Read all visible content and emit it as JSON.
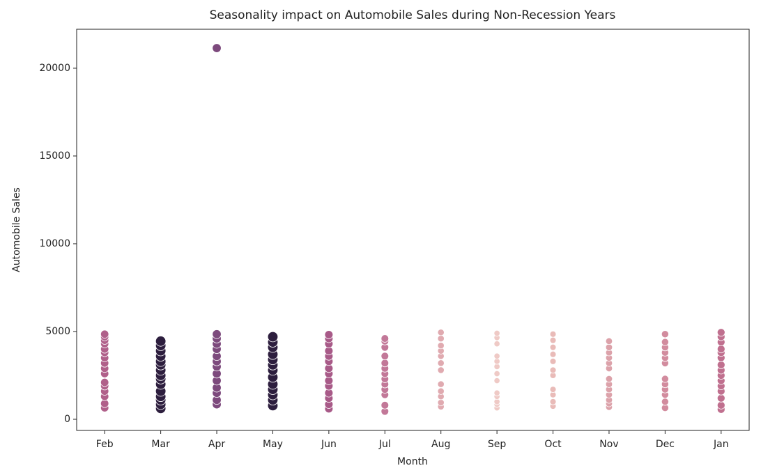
{
  "chart_data": {
    "type": "scatter",
    "title": "Seasonality impact on Automobile Sales during Non-Recession Years",
    "x_label": "Month",
    "y_label": "Automobile Sales",
    "categories": [
      "Feb",
      "Mar",
      "Apr",
      "May",
      "Jun",
      "Jul",
      "Aug",
      "Sep",
      "Oct",
      "Nov",
      "Dec",
      "Jan"
    ],
    "colors": [
      "#b0608a",
      "#2d1e3e",
      "#7d4a7d",
      "#2d1e3e",
      "#a85a88",
      "#c27898",
      "#e0aab0",
      "#efcac6",
      "#e9bbb8",
      "#dca2aa",
      "#d28c9e",
      "#c0708f"
    ],
    "values": [
      [
        650,
        900,
        1300,
        1600,
        1900,
        2100,
        2600,
        2900,
        3200,
        3500,
        3800,
        4000,
        4300,
        4500,
        4700,
        4850
      ],
      [
        620,
        850,
        1100,
        1300,
        1600,
        2000,
        2300,
        2500,
        2800,
        3100,
        3300,
        3600,
        3900,
        4200,
        4450
      ],
      [
        850,
        1100,
        1500,
        1800,
        2200,
        2600,
        3000,
        3300,
        3600,
        4000,
        4300,
        4600,
        4850,
        21147
      ],
      [
        780,
        1100,
        1400,
        1700,
        2000,
        2400,
        2800,
        3100,
        3400,
        3700,
        4100,
        4400,
        4700
      ],
      [
        600,
        850,
        1200,
        1500,
        1900,
        2200,
        2600,
        2900,
        3300,
        3600,
        3900,
        4300,
        4600,
        4820
      ],
      [
        450,
        800,
        1400,
        1700,
        2000,
        2300,
        2600,
        2900,
        3200,
        3600,
        4100,
        4450,
        4600
      ],
      [
        720,
        950,
        1300,
        1600,
        2000,
        2800,
        3200,
        3600,
        3900,
        4200,
        4600,
        4950
      ],
      [
        650,
        850,
        1000,
        1300,
        1500,
        2200,
        2600,
        3000,
        3300,
        3600,
        4300,
        4650,
        4900
      ],
      [
        750,
        1000,
        1400,
        1700,
        2500,
        2800,
        3300,
        3700,
        4100,
        4500,
        4850
      ],
      [
        700,
        900,
        1100,
        1400,
        1700,
        2000,
        2300,
        2900,
        3200,
        3500,
        3800,
        4100,
        4450
      ],
      [
        650,
        1000,
        1400,
        1700,
        2000,
        2300,
        3200,
        3500,
        3800,
        4100,
        4400,
        4850
      ],
      [
        560,
        800,
        1200,
        1600,
        1900,
        2200,
        2500,
        2800,
        3100,
        3500,
        3800,
        4000,
        4400,
        4700,
        4950
      ]
    ],
    "ylim": [
      -635,
      22220
    ],
    "yticks": [
      0,
      5000,
      10000,
      15000,
      20000
    ]
  }
}
